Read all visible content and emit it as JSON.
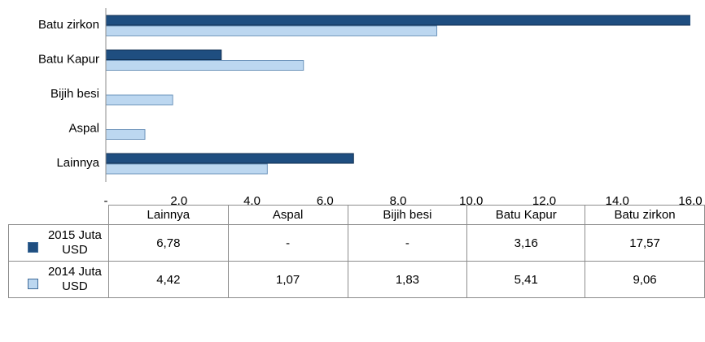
{
  "chart_data": {
    "type": "bar",
    "orientation": "horizontal",
    "categories": [
      "Lainnya",
      "Aspal",
      "Bijih besi",
      "Batu Kapur",
      "Batu zirkon"
    ],
    "series": [
      {
        "name": "2015 Juta USD",
        "color": "#1f4e80",
        "values": [
          6.78,
          null,
          null,
          3.16,
          17.57
        ],
        "value_labels": [
          "6,78",
          "-",
          "-",
          "3,16",
          "17,57"
        ]
      },
      {
        "name": "2014 Juta USD",
        "color": "#bcd7f0",
        "values": [
          4.42,
          1.07,
          1.83,
          5.41,
          9.06
        ],
        "value_labels": [
          "4,42",
          "1,07",
          "1,83",
          "5,41",
          "9,06"
        ]
      }
    ],
    "xlim": [
      0,
      16
    ],
    "xticks": [
      {
        "value": 0,
        "label": "-"
      },
      {
        "value": 2,
        "label": "2,0"
      },
      {
        "value": 4,
        "label": "4,0"
      },
      {
        "value": 6,
        "label": "6,0"
      },
      {
        "value": 8,
        "label": "8,0"
      },
      {
        "value": 10,
        "label": "10,0"
      },
      {
        "value": 12,
        "label": "12,0"
      },
      {
        "value": 14,
        "label": "14,0"
      },
      {
        "value": 16,
        "label": "16,0"
      }
    ],
    "grid": false
  }
}
